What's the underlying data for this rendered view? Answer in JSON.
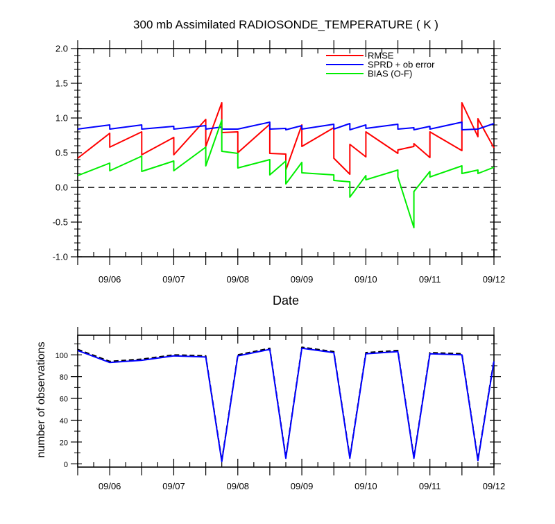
{
  "chart_data": [
    {
      "type": "line",
      "title": "300 mb Assimilated RADIOSONDE_TEMPERATURE ( K )",
      "xlabel": "Date",
      "ylabel": "",
      "ylim": [
        -1.0,
        2.0
      ],
      "yticks": [
        "2.0",
        "1.5",
        "1.0",
        "0.5",
        "0.0",
        "-0.5",
        "-1.0"
      ],
      "xticks": [
        "09/06",
        "09/07",
        "09/08",
        "09/09",
        "09/10",
        "09/11",
        "09/12"
      ],
      "legend": "top-right",
      "zero_line": "dashed",
      "series": [
        {
          "name": "RMSE",
          "color": "#ff0000",
          "x": [
            5.5,
            6.0,
            6.0,
            6.5,
            6.5,
            7.0,
            7.0,
            7.5,
            7.5,
            7.75,
            7.75,
            8.0,
            8.0,
            8.5,
            8.5,
            8.75,
            8.75,
            9.0,
            9.0,
            9.5,
            9.5,
            9.75,
            9.75,
            10.0,
            10.0,
            10.5,
            10.5,
            10.75,
            10.75,
            11.0,
            11.0,
            11.5,
            11.5,
            11.75,
            11.75,
            12.0
          ],
          "y": [
            0.42,
            0.78,
            0.58,
            0.8,
            0.47,
            0.72,
            0.47,
            0.98,
            0.59,
            1.22,
            0.79,
            0.8,
            0.5,
            0.91,
            0.49,
            0.48,
            0.25,
            0.9,
            0.59,
            0.86,
            0.42,
            0.19,
            0.62,
            0.44,
            0.8,
            0.49,
            0.54,
            0.59,
            0.63,
            0.43,
            0.8,
            0.53,
            1.22,
            0.73,
            0.99,
            0.57
          ]
        },
        {
          "name": "SPRD + ob error",
          "color": "#0000ff",
          "x": [
            5.5,
            6.0,
            6.0,
            6.5,
            6.5,
            7.0,
            7.0,
            7.5,
            7.5,
            7.75,
            7.75,
            8.0,
            8.0,
            8.5,
            8.5,
            8.75,
            8.75,
            9.0,
            9.0,
            9.5,
            9.5,
            9.75,
            9.75,
            10.0,
            10.0,
            10.5,
            10.5,
            10.75,
            10.75,
            11.0,
            11.0,
            11.5,
            11.5,
            11.75,
            11.75,
            12.0
          ],
          "y": [
            0.84,
            0.9,
            0.84,
            0.9,
            0.84,
            0.88,
            0.84,
            0.89,
            0.84,
            0.87,
            0.84,
            0.84,
            0.84,
            0.94,
            0.84,
            0.85,
            0.83,
            0.89,
            0.84,
            0.91,
            0.84,
            0.92,
            0.83,
            0.9,
            0.85,
            0.91,
            0.84,
            0.86,
            0.83,
            0.88,
            0.84,
            0.94,
            0.83,
            0.84,
            0.84,
            0.92
          ]
        },
        {
          "name": "BIAS (O-F)",
          "color": "#00ee00",
          "x": [
            5.5,
            6.0,
            6.0,
            6.5,
            6.5,
            7.0,
            7.0,
            7.5,
            7.5,
            7.75,
            7.75,
            8.0,
            8.0,
            8.5,
            8.5,
            8.75,
            8.75,
            9.0,
            9.0,
            9.5,
            9.5,
            9.75,
            9.75,
            10.0,
            10.0,
            10.5,
            10.5,
            10.75,
            10.75,
            11.0,
            11.0,
            11.5,
            11.5,
            11.75,
            11.75,
            12.0
          ],
          "y": [
            0.17,
            0.35,
            0.24,
            0.45,
            0.23,
            0.38,
            0.24,
            0.58,
            0.31,
            0.97,
            0.52,
            0.49,
            0.28,
            0.4,
            0.18,
            0.38,
            0.05,
            0.36,
            0.21,
            0.18,
            0.1,
            0.08,
            -0.14,
            0.17,
            0.11,
            0.25,
            0.15,
            -0.58,
            -0.06,
            0.23,
            0.15,
            0.31,
            0.2,
            0.25,
            0.2,
            0.29
          ]
        }
      ]
    },
    {
      "type": "line",
      "title": "",
      "xlabel": "",
      "ylabel": "number of observations",
      "ylim": [
        -3,
        118
      ],
      "yticks": [
        "100",
        "80",
        "60",
        "40",
        "20",
        "0"
      ],
      "xticks": [
        "09/06",
        "09/07",
        "09/08",
        "09/09",
        "09/10",
        "09/11",
        "09/12"
      ],
      "series": [
        {
          "name": "",
          "color": "#000000",
          "dash": "dashed",
          "x": [
            5.5,
            6.0,
            6.5,
            7.0,
            7.5,
            7.75,
            8.0,
            8.5,
            8.75,
            9.0,
            9.5,
            9.75,
            10.0,
            10.5,
            10.75,
            11.0,
            11.5,
            11.75,
            12.0
          ],
          "y": [
            105,
            94,
            96,
            100,
            99,
            3,
            100,
            106,
            6,
            107,
            103,
            6,
            102,
            104,
            6,
            102,
            101,
            4,
            95
          ]
        },
        {
          "name": "",
          "color": "#0000ff",
          "dash": "solid",
          "x": [
            5.5,
            6.0,
            6.5,
            7.0,
            7.5,
            7.75,
            8.0,
            8.5,
            8.75,
            9.0,
            9.5,
            9.75,
            10.0,
            10.5,
            10.75,
            11.0,
            11.5,
            11.75,
            12.0
          ],
          "y": [
            104,
            93,
            95,
            99,
            98,
            2,
            99,
            105,
            5,
            106,
            102,
            5,
            101,
            103,
            5,
            101,
            100,
            3,
            94
          ]
        }
      ]
    }
  ]
}
